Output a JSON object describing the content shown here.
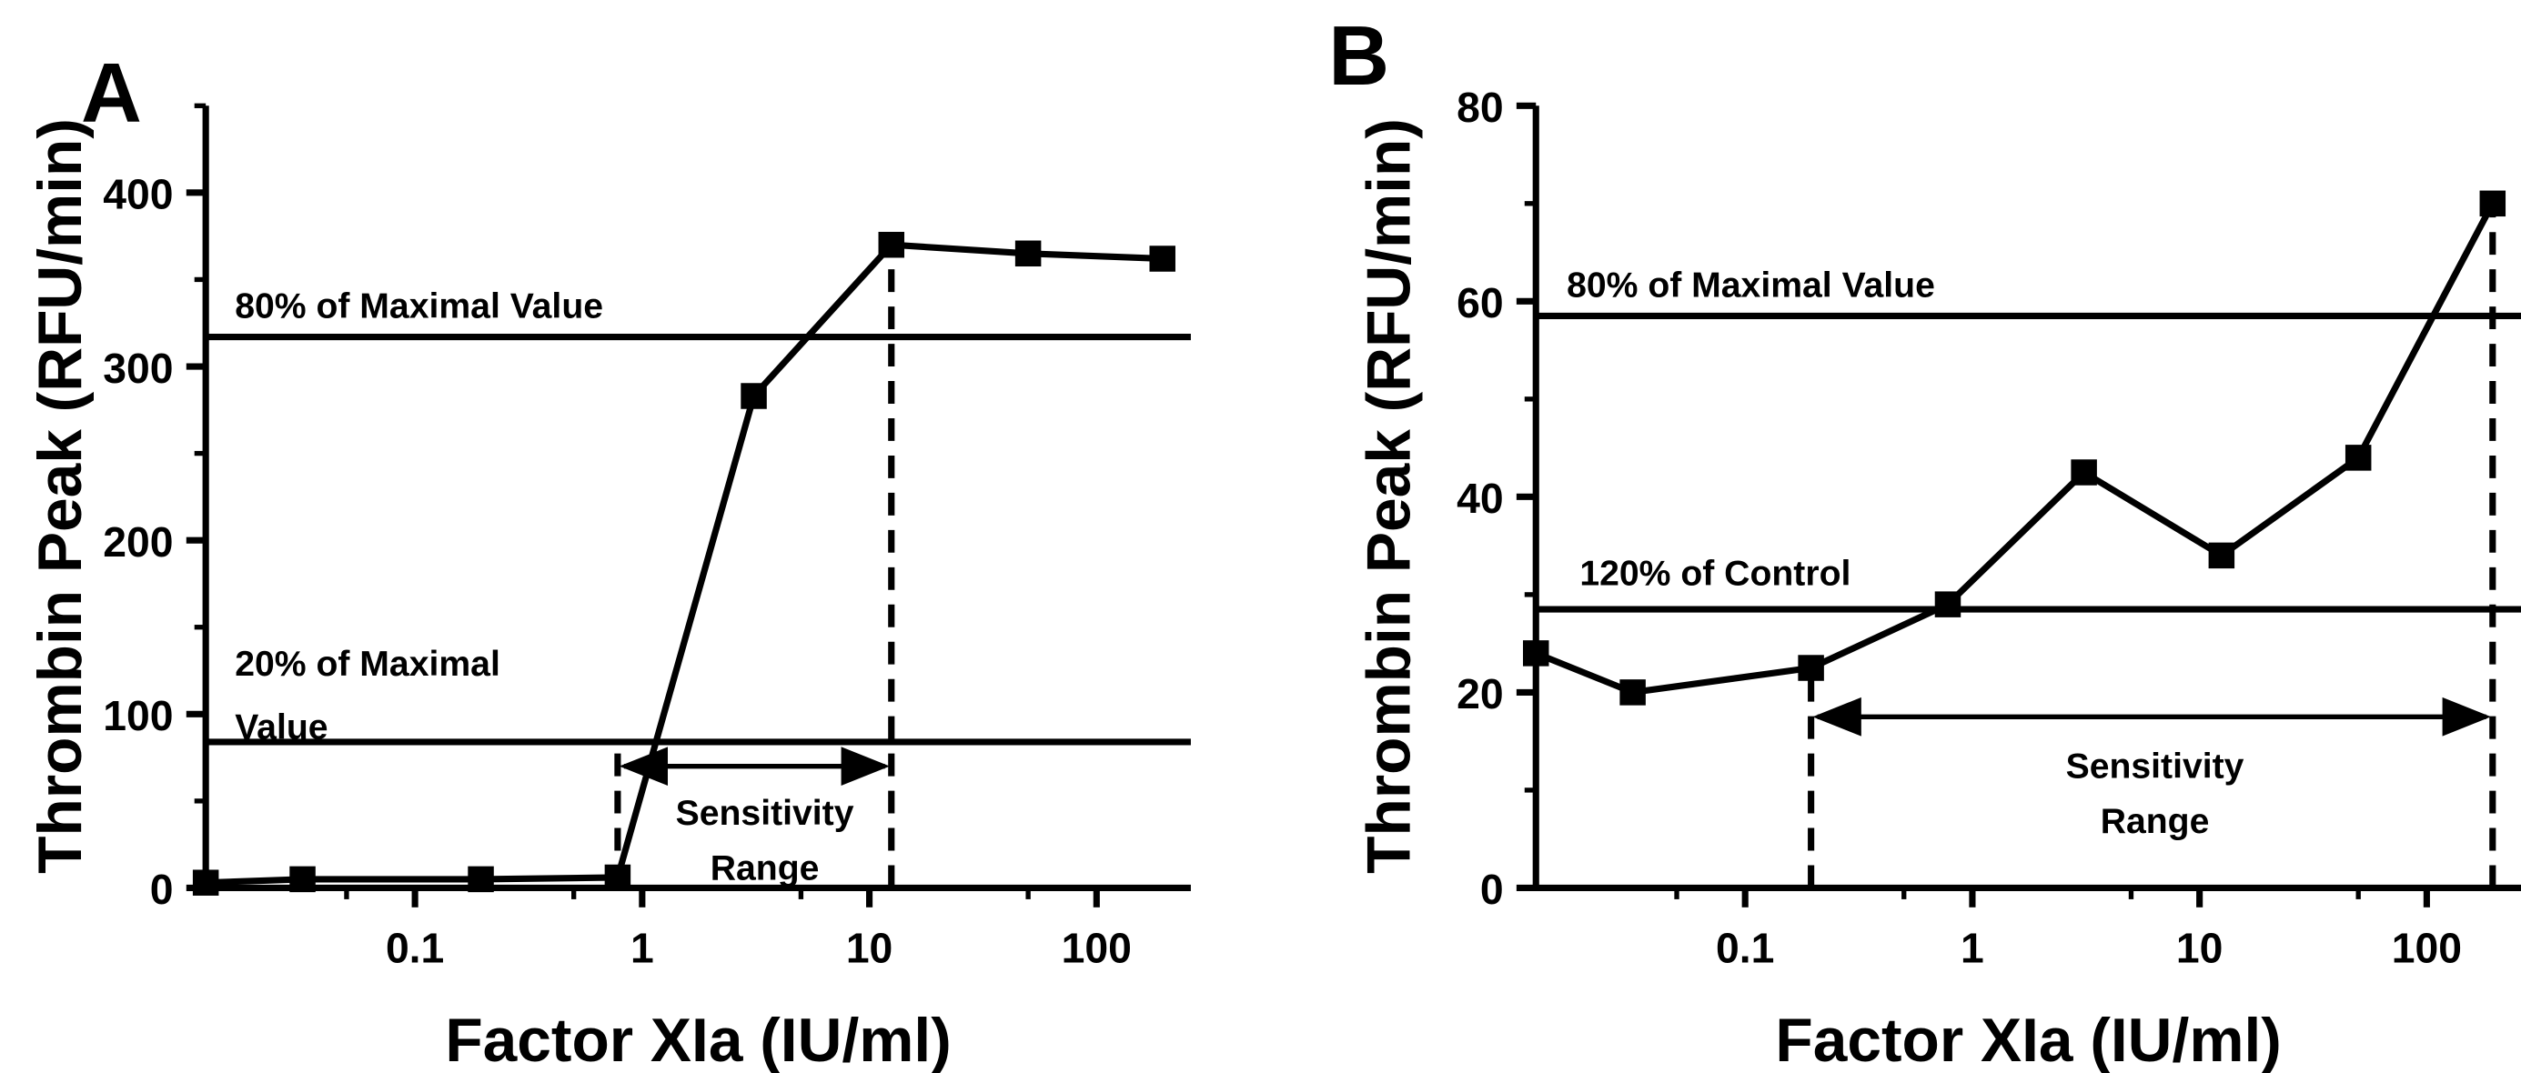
{
  "chart_data": [
    {
      "panel": "A",
      "type": "line",
      "xscale": "log",
      "xlabel": "Factor XIa (IU/ml)",
      "ylabel": "Thrombin Peak (RFU/min)",
      "xlim": [
        0.012,
        260
      ],
      "ylim": [
        0,
        450
      ],
      "xticks": [
        0.1,
        1,
        10,
        100
      ],
      "xtick_labels": [
        "0.1",
        "1",
        "10",
        "100"
      ],
      "yticks": [
        0,
        100,
        200,
        300,
        400
      ],
      "ytick_labels": [
        "0",
        "100",
        "200",
        "300",
        "400"
      ],
      "series": [
        {
          "name": "Thrombin Peak",
          "x": [
            0.012,
            0.032,
            0.195,
            0.78,
            3.1,
            12.5,
            50,
            195
          ],
          "y": [
            3,
            5,
            5,
            6,
            283,
            370,
            365,
            362
          ]
        }
      ],
      "hlines": [
        {
          "y": 317,
          "label_lines": [
            "80% of Maximal Value"
          ]
        },
        {
          "y": 84,
          "label_lines": [
            "20% of Maximal",
            "Value"
          ]
        }
      ],
      "vlines": [
        {
          "x": 0.78,
          "y_from": 0,
          "y_to": 84
        },
        {
          "x": 12.5,
          "y_from": 0,
          "y_to": 370
        }
      ],
      "range_arrow": {
        "x_from": 0.78,
        "x_to": 12.5,
        "y": 70,
        "label_lines": [
          "Sensitivity",
          "Range"
        ]
      }
    },
    {
      "panel": "B",
      "type": "line",
      "xscale": "log",
      "xlabel": "Factor XIa (IU/ml)",
      "ylabel": "Thrombin Peak (RFU/min)",
      "xlim": [
        0.012,
        260
      ],
      "ylim": [
        0,
        80
      ],
      "xticks": [
        0.1,
        1,
        10,
        100
      ],
      "xtick_labels": [
        "0.1",
        "1",
        "10",
        "100"
      ],
      "yticks": [
        0,
        20,
        40,
        60,
        80
      ],
      "ytick_labels": [
        "0",
        "20",
        "40",
        "60",
        "80"
      ],
      "series": [
        {
          "name": "Thrombin Peak",
          "x": [
            0.012,
            0.032,
            0.195,
            0.78,
            3.1,
            12.5,
            50,
            195
          ],
          "y": [
            24,
            20,
            22.5,
            29,
            42.5,
            34,
            44,
            70
          ]
        }
      ],
      "hlines": [
        {
          "y": 58.5,
          "label_lines": [
            "80% of Maximal Value"
          ]
        },
        {
          "y": 28.5,
          "label_lines": [
            "120% of Control"
          ]
        }
      ],
      "vlines": [
        {
          "x": 0.195,
          "y_from": 0,
          "y_to": 22.5
        },
        {
          "x": 195,
          "y_from": 0,
          "y_to": 70
        }
      ],
      "range_arrow": {
        "x_from": 0.195,
        "x_to": 195,
        "y": 17.5,
        "label_lines": [
          "Sensitivity",
          "Range"
        ]
      }
    }
  ]
}
